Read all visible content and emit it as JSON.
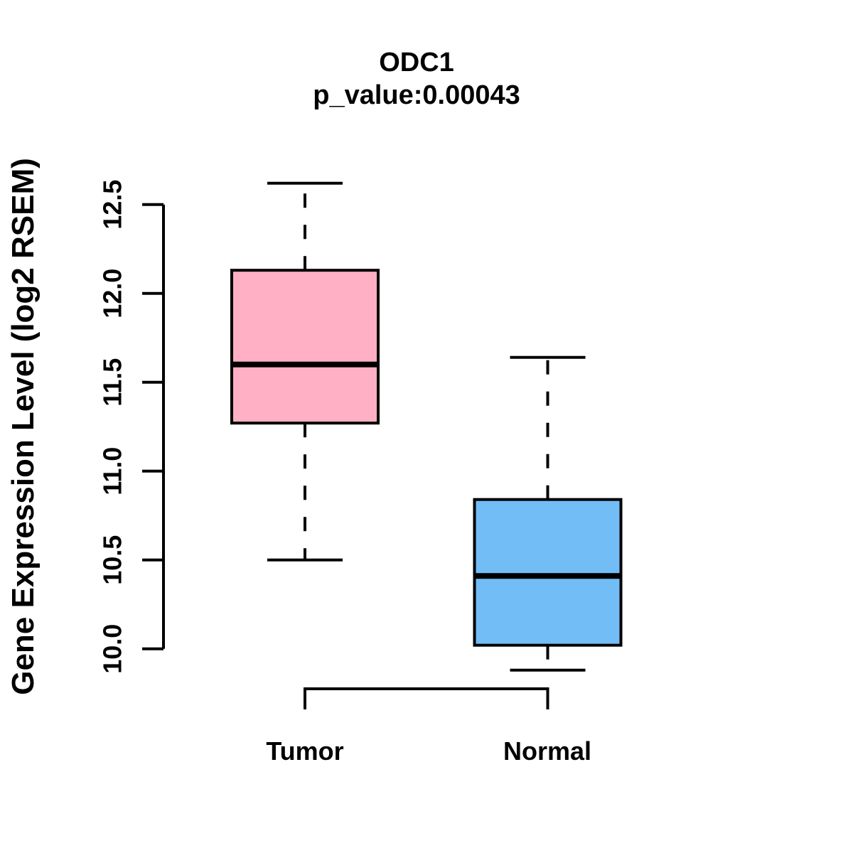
{
  "chart_data": {
    "type": "boxplot",
    "title": "ODC1",
    "subtitle": "p_value:0.00043",
    "p_value": 0.00043,
    "ylabel": "Gene Expression Level (log2 RSEM)",
    "xlabel": "",
    "ylim": [
      9.85,
      12.65
    ],
    "yticks": [
      10.0,
      10.5,
      11.0,
      11.5,
      12.0,
      12.5
    ],
    "ytick_labels": [
      "10.0",
      "10.5",
      "11.0",
      "11.5",
      "12.0",
      "12.5"
    ],
    "grid": false,
    "legend": "none",
    "whisker_line_style": "dashed",
    "categories": [
      "Tumor",
      "Normal"
    ],
    "groups": [
      {
        "label": "Tumor",
        "fill_color": "#FFB0C4",
        "stats": {
          "lower_whisker": 10.5,
          "q1": 11.27,
          "median": 11.6,
          "q3": 12.13,
          "upper_whisker": 12.62
        }
      },
      {
        "label": "Normal",
        "fill_color": "#73BDF6",
        "stats": {
          "lower_whisker": 9.88,
          "q1": 10.02,
          "median": 10.41,
          "q3": 10.84,
          "upper_whisker": 11.64
        }
      }
    ],
    "comparison_bracket": {
      "between": [
        "Tumor",
        "Normal"
      ]
    },
    "colors": {
      "tumor_fill": "#FFB0C4",
      "normal_fill": "#73BDF6",
      "stroke": "#000000",
      "background": "#FFFFFF"
    }
  }
}
